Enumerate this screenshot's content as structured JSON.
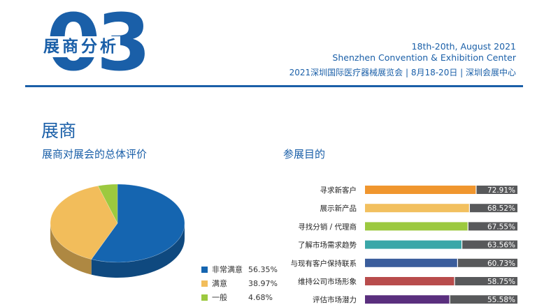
{
  "header": {
    "number": "03",
    "section_label": "展商分析",
    "dates": "18th-20th, August 2021",
    "venue": "Shenzhen Convention & Exhibition Center",
    "event_cn": "2021深圳国际医疗器械展览会 | 8月18-20日 | 深圳会展中心"
  },
  "main_heading": "展商",
  "colors": {
    "accent": "#1a5fa8"
  },
  "chart_data": [
    {
      "type": "pie",
      "title": "展商对展会的总体评价",
      "slices": [
        {
          "label": "非常满意",
          "value": 56.35,
          "value_label": "56.35%",
          "color": "#1565b0"
        },
        {
          "label": "满意",
          "value": 38.97,
          "value_label": "38.97%",
          "color": "#f2bd5b"
        },
        {
          "label": "一般",
          "value": 4.68,
          "value_label": "4.68%",
          "color": "#9cc93f"
        }
      ],
      "legend": "bottom-right"
    },
    {
      "type": "bar",
      "orientation": "horizontal",
      "title": "参展目的",
      "categories": [
        "寻求新客户",
        "展示新产品",
        "寻找分销 / 代理商",
        "了解市场需求趋势",
        "与现有客户保持联系",
        "维持公司市场形象",
        "评估市场潜力"
      ],
      "values": [
        72.91,
        68.52,
        67.55,
        63.56,
        60.73,
        58.75,
        55.58
      ],
      "value_labels": [
        "72.91%",
        "68.52%",
        "67.55%",
        "63.56%",
        "60.73%",
        "58.75%",
        "55.58%"
      ],
      "colors": [
        "#f0962e",
        "#f2c05f",
        "#9cc93f",
        "#3aa7a8",
        "#3a5d9c",
        "#b84c4c",
        "#5a2f7e"
      ],
      "remainder_color": "#58595b",
      "xlim": [
        0,
        100
      ]
    }
  ]
}
